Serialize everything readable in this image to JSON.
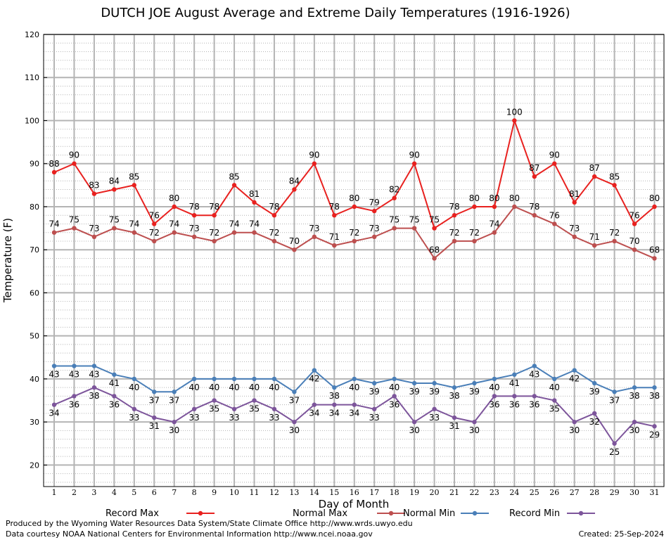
{
  "chart_data": {
    "type": "line",
    "title": "DUTCH JOE August Average and Extreme Daily Temperatures (1916-1926)",
    "xlabel": "Day of Month",
    "ylabel": "Temperature (F)",
    "ylim": [
      15,
      120
    ],
    "yticks": [
      20,
      30,
      40,
      50,
      60,
      70,
      80,
      90,
      100,
      110,
      120
    ],
    "x": [
      1,
      2,
      3,
      4,
      5,
      6,
      7,
      8,
      9,
      10,
      11,
      12,
      13,
      14,
      15,
      16,
      17,
      18,
      19,
      20,
      21,
      22,
      23,
      24,
      25,
      26,
      27,
      28,
      29,
      30,
      31
    ],
    "grid": true,
    "legend_position": "bottom",
    "series": [
      {
        "name": "Record Max",
        "color": "#e8211f",
        "values": [
          88,
          90,
          83,
          84,
          85,
          76,
          80,
          78,
          78,
          85,
          81,
          78,
          84,
          90,
          78,
          80,
          79,
          82,
          90,
          75,
          78,
          80,
          80,
          100,
          87,
          90,
          81,
          87,
          85,
          76,
          80
        ]
      },
      {
        "name": "Normal Max",
        "color": "#bd4f4f",
        "values": [
          74,
          75,
          73,
          75,
          74,
          72,
          74,
          73,
          72,
          74,
          74,
          72,
          70,
          73,
          71,
          72,
          73,
          75,
          75,
          68,
          72,
          72,
          74,
          80,
          78,
          76,
          73,
          71,
          72,
          70,
          68
        ]
      },
      {
        "name": "Normal Min",
        "color": "#4a7fb8",
        "values": [
          43,
          43,
          43,
          41,
          40,
          37,
          37,
          40,
          40,
          40,
          40,
          40,
          37,
          42,
          38,
          40,
          39,
          40,
          39,
          39,
          38,
          39,
          40,
          41,
          43,
          40,
          42,
          39,
          37,
          38,
          38
        ]
      },
      {
        "name": "Record Min",
        "color": "#7d559b",
        "values": [
          34,
          36,
          38,
          36,
          33,
          31,
          30,
          33,
          35,
          33,
          35,
          33,
          30,
          34,
          34,
          34,
          33,
          36,
          30,
          33,
          31,
          30,
          36,
          36,
          36,
          35,
          30,
          32,
          25,
          30,
          29
        ]
      }
    ]
  },
  "footer": {
    "credit_line1": "Produced by the Wyoming Water Resources Data System/State Climate Office http://www.wrds.uwyo.edu",
    "credit_line2": "Data courtesy NOAA National Centers for Environmental Information http://www.ncei.noaa.gov",
    "created": "Created:  25-Sep-2024"
  }
}
